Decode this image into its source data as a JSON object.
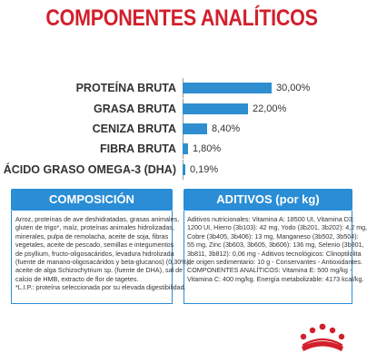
{
  "title": "COMPONENTES ANALÍTICOS",
  "nutrients": [
    {
      "label": "PROTEÍNA BRUTA",
      "value": "30,00%",
      "percent": 30.0
    },
    {
      "label": "GRASA BRUTA",
      "value": "22,00%",
      "percent": 22.0
    },
    {
      "label": "CENIZA BRUTA",
      "value": "8,40%",
      "percent": 8.4
    },
    {
      "label": "FIBRA BRUTA",
      "value": "1,80%",
      "percent": 1.8
    },
    {
      "label": "ÁCIDO GRASO OMEGA-3 (DHA)",
      "value": "0,19%",
      "percent": 0.19
    }
  ],
  "bar_color": "#2f8ecf",
  "title_color": "#d21f2b",
  "composition": {
    "header": "COMPOSICIÓN",
    "lines": [
      "Arroz, proteínas de ave deshidratadas, grasas animales,",
      "gluten de trigo*, maíz, proteínas animales hidrolizadas,",
      "minerales, pulpa de remolacha, aceite de soja, fibras",
      "vegetales, aceite de pescado, semillas e integumentos",
      "de psyllium, fructo-oligosacáridos, levadura hidrolizada",
      "(fuente de manano-oligosacáridos y beta-glucanos) (0,30%),",
      "aceite de alga Schizochytrium sp. (fuente de DHA), sal de",
      "calcio de HMB, extracto de flor de tagetes.",
      "*L.I.P.: proteína seleccionada por su elevada digestibilidad."
    ]
  },
  "additives": {
    "header": "ADITIVOS (por kg)",
    "lines": [
      "Aditivos nutricionales: Vitamina A: 18500 UI, Vitamina D3:",
      "1200 UI, Hierro (3b103): 42 mg, Yodo (3b201, 3b202): 4,2 mg,",
      "Cobre (3b405, 3b406): 13 mg, Manganeso (3b502, 3b504):",
      "55 mg, Zinc (3b603, 3b605, 3b606): 136 mg, Selenio (3b801,",
      "3b811, 3b812): 0,06 mg - Aditivos tecnológicos: Clinoptilolita",
      "de origen sedimentario: 10 g - Conservantes - Antioxidantes.",
      "COMPONENTES ANALÍTICOS: Vitamina E: 500 mg/kg -",
      "Vitamina C: 400 mg/kg. Energía metabolizable: 4173 kcal/kg."
    ]
  },
  "panel_color": "#2a8dd6",
  "logo_color": "#d21f2b",
  "logo_icon": "royal-canin-crown-logo"
}
